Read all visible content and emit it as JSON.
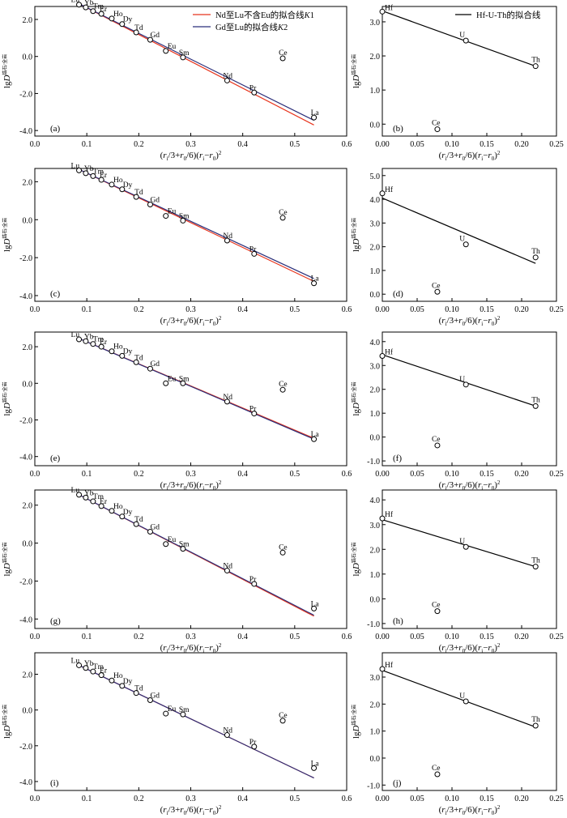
{
  "colors": {
    "red_fit": "#e8341c",
    "navy_fit": "#2b2f7a",
    "black_fit": "#000000"
  },
  "left_axis": {
    "ylabel_main": "lgD",
    "ylabel_sup": "锆石/全岩",
    "xlabel": "(ri/3+r0/6)(ri−r0)²",
    "xlim": [
      0,
      0.6
    ],
    "xticks": [
      "0.0",
      "0.1",
      "0.2",
      "0.3",
      "0.4",
      "0.5",
      "0.6"
    ]
  },
  "right_axis": {
    "ylabel_main": "lgD",
    "ylabel_sup": "锆石/全岩",
    "xlabel": "(ri/3+r0/6)(ri−r0)²",
    "xticks_a": [
      "0.00",
      "0.05",
      "0.10",
      "0.15",
      "0.20",
      "0.25"
    ],
    "xticks_b": [
      "0.00",
      "0.05",
      "0.10",
      "0.15",
      "0.20",
      "0.25"
    ]
  },
  "legend_left": {
    "red_label": "Nd至Lu不含Eu的拟合线K1",
    "navy_label": "Gd至Lu的拟合线K2"
  },
  "legend_right": {
    "black_label": "Hf-U-Th的拟合线"
  },
  "chart_data": [
    {
      "panel": "(a)",
      "type": "scatter",
      "ylim": [
        -4.3,
        2.7
      ],
      "yticks": [
        "-4.0",
        "-2.0",
        "0.0",
        "2.0"
      ],
      "points": [
        {
          "label": "Lu",
          "x": 0.085,
          "y": 2.8
        },
        {
          "label": "Yb",
          "x": 0.098,
          "y": 2.65
        },
        {
          "label": "Tm",
          "x": 0.112,
          "y": 2.45
        },
        {
          "label": "Er",
          "x": 0.128,
          "y": 2.3
        },
        {
          "label": "Ho",
          "x": 0.148,
          "y": 2.05
        },
        {
          "label": "Dy",
          "x": 0.168,
          "y": 1.75
        },
        {
          "label": "Td",
          "x": 0.195,
          "y": 1.3
        },
        {
          "label": "Gd",
          "x": 0.222,
          "y": 0.9
        },
        {
          "label": "Eu",
          "x": 0.252,
          "y": 0.3
        },
        {
          "label": "Sm",
          "x": 0.285,
          "y": -0.05
        },
        {
          "label": "Nd",
          "x": 0.37,
          "y": -1.3
        },
        {
          "label": "Pr",
          "x": 0.422,
          "y": -1.95
        },
        {
          "label": "Ce",
          "x": 0.477,
          "y": -0.1
        },
        {
          "label": "La",
          "x": 0.537,
          "y": -3.3
        }
      ],
      "fit_red": [
        [
          0.085,
          2.85
        ],
        [
          0.537,
          -3.7
        ]
      ],
      "fit_navy": [
        [
          0.085,
          2.85
        ],
        [
          0.537,
          -3.45
        ]
      ],
      "legend": true
    },
    {
      "panel": "(b)",
      "type": "scatter",
      "ylim": [
        -0.35,
        3.45
      ],
      "yticks": [
        "0.0",
        "1.0",
        "2.0",
        "3.0"
      ],
      "points": [
        {
          "label": "Hf",
          "x": 0.0,
          "y": 3.3
        },
        {
          "label": "Ce",
          "x": 0.079,
          "y": -0.15
        },
        {
          "label": "U",
          "x": 0.12,
          "y": 2.45
        },
        {
          "label": "Th",
          "x": 0.22,
          "y": 1.7
        }
      ],
      "fit_black": [
        [
          0.0,
          3.32
        ],
        [
          0.22,
          1.7
        ]
      ],
      "legend": true
    },
    {
      "panel": "(c)",
      "type": "scatter",
      "ylim": [
        -4.3,
        2.7
      ],
      "yticks": [
        "-4.0",
        "-2.0",
        "0.0",
        "2.0"
      ],
      "points": [
        {
          "label": "Lu",
          "x": 0.085,
          "y": 2.6
        },
        {
          "label": "Yb",
          "x": 0.098,
          "y": 2.45
        },
        {
          "label": "Tm",
          "x": 0.112,
          "y": 2.3
        },
        {
          "label": "Er",
          "x": 0.128,
          "y": 2.1
        },
        {
          "label": "Ho",
          "x": 0.148,
          "y": 1.85
        },
        {
          "label": "Dy",
          "x": 0.168,
          "y": 1.6
        },
        {
          "label": "Td",
          "x": 0.195,
          "y": 1.2
        },
        {
          "label": "Gd",
          "x": 0.222,
          "y": 0.8
        },
        {
          "label": "Eu",
          "x": 0.252,
          "y": 0.2
        },
        {
          "label": "Sm",
          "x": 0.285,
          "y": -0.05
        },
        {
          "label": "Nd",
          "x": 0.37,
          "y": -1.1
        },
        {
          "label": "Pr",
          "x": 0.422,
          "y": -1.8
        },
        {
          "label": "Ce",
          "x": 0.477,
          "y": 0.1
        },
        {
          "label": "La",
          "x": 0.537,
          "y": -3.35
        }
      ],
      "fit_red": [
        [
          0.085,
          2.65
        ],
        [
          0.537,
          -3.25
        ]
      ],
      "fit_navy": [
        [
          0.085,
          2.65
        ],
        [
          0.537,
          -3.1
        ]
      ]
    },
    {
      "panel": "(d)",
      "type": "scatter",
      "ylim": [
        -0.3,
        5.3
      ],
      "yticks": [
        "0.0",
        "1.0",
        "2.0",
        "3.0",
        "4.0",
        "5.0"
      ],
      "points": [
        {
          "label": "Hf",
          "x": 0.0,
          "y": 4.25
        },
        {
          "label": "Ce",
          "x": 0.079,
          "y": 0.1
        },
        {
          "label": "U",
          "x": 0.12,
          "y": 2.1
        },
        {
          "label": "Th",
          "x": 0.22,
          "y": 1.55
        }
      ],
      "fit_black": [
        [
          0.0,
          4.05
        ],
        [
          0.22,
          1.3
        ]
      ]
    },
    {
      "panel": "(e)",
      "type": "scatter",
      "ylim": [
        -4.5,
        2.8
      ],
      "yticks": [
        "-4.0",
        "-2.0",
        "0.0",
        "2.0"
      ],
      "points": [
        {
          "label": "Lu",
          "x": 0.085,
          "y": 2.4
        },
        {
          "label": "Yb",
          "x": 0.098,
          "y": 2.3
        },
        {
          "label": "Tm",
          "x": 0.112,
          "y": 2.15
        },
        {
          "label": "Er",
          "x": 0.128,
          "y": 2.0
        },
        {
          "label": "Ho",
          "x": 0.148,
          "y": 1.75
        },
        {
          "label": "Dy",
          "x": 0.168,
          "y": 1.5
        },
        {
          "label": "Td",
          "x": 0.195,
          "y": 1.15
        },
        {
          "label": "Gd",
          "x": 0.222,
          "y": 0.8
        },
        {
          "label": "Eu",
          "x": 0.252,
          "y": 0.0
        },
        {
          "label": "Sm",
          "x": 0.285,
          "y": 0.0
        },
        {
          "label": "Nd",
          "x": 0.37,
          "y": -1.0
        },
        {
          "label": "Pr",
          "x": 0.422,
          "y": -1.65
        },
        {
          "label": "Ce",
          "x": 0.477,
          "y": -0.35
        },
        {
          "label": "La",
          "x": 0.537,
          "y": -3.05
        }
      ],
      "fit_red": [
        [
          0.085,
          2.45
        ],
        [
          0.537,
          -3.0
        ]
      ],
      "fit_navy": [
        [
          0.085,
          2.45
        ],
        [
          0.537,
          -3.05
        ]
      ]
    },
    {
      "panel": "(f)",
      "type": "scatter",
      "ylim": [
        -1.2,
        4.4
      ],
      "yticks": [
        "-1.0",
        "0.0",
        "1.0",
        "2.0",
        "3.0",
        "4.0"
      ],
      "points": [
        {
          "label": "Hf",
          "x": 0.0,
          "y": 3.4
        },
        {
          "label": "Ce",
          "x": 0.079,
          "y": -0.35
        },
        {
          "label": "U",
          "x": 0.12,
          "y": 2.2
        },
        {
          "label": "Th",
          "x": 0.22,
          "y": 1.3
        }
      ],
      "fit_black": [
        [
          0.0,
          3.45
        ],
        [
          0.22,
          1.3
        ]
      ]
    },
    {
      "panel": "(g)",
      "type": "scatter",
      "ylim": [
        -4.5,
        2.8
      ],
      "yticks": [
        "-4.0",
        "-2.0",
        "0.0",
        "2.0"
      ],
      "points": [
        {
          "label": "Lu",
          "x": 0.085,
          "y": 2.55
        },
        {
          "label": "Yb",
          "x": 0.098,
          "y": 2.4
        },
        {
          "label": "Tm",
          "x": 0.112,
          "y": 2.2
        },
        {
          "label": "Er",
          "x": 0.128,
          "y": 1.95
        },
        {
          "label": "Ho",
          "x": 0.148,
          "y": 1.7
        },
        {
          "label": "Dy",
          "x": 0.168,
          "y": 1.4
        },
        {
          "label": "Td",
          "x": 0.195,
          "y": 1.0
        },
        {
          "label": "Gd",
          "x": 0.222,
          "y": 0.6
        },
        {
          "label": "Eu",
          "x": 0.252,
          "y": -0.05
        },
        {
          "label": "Sm",
          "x": 0.285,
          "y": -0.3
        },
        {
          "label": "Nd",
          "x": 0.37,
          "y": -1.45
        },
        {
          "label": "Pr",
          "x": 0.422,
          "y": -2.15
        },
        {
          "label": "Ce",
          "x": 0.477,
          "y": -0.5
        },
        {
          "label": "La",
          "x": 0.537,
          "y": -3.45
        }
      ],
      "fit_red": [
        [
          0.085,
          2.55
        ],
        [
          0.537,
          -3.85
        ]
      ],
      "fit_navy": [
        [
          0.085,
          2.55
        ],
        [
          0.537,
          -3.8
        ]
      ]
    },
    {
      "panel": "(h)",
      "type": "scatter",
      "ylim": [
        -1.2,
        4.4
      ],
      "yticks": [
        "-1.0",
        "0.0",
        "1.0",
        "2.0",
        "3.0",
        "4.0"
      ],
      "points": [
        {
          "label": "Hf",
          "x": 0.0,
          "y": 3.25
        },
        {
          "label": "Ce",
          "x": 0.079,
          "y": -0.5
        },
        {
          "label": "U",
          "x": 0.12,
          "y": 2.1
        },
        {
          "label": "Th",
          "x": 0.22,
          "y": 1.3
        }
      ],
      "fit_black": [
        [
          0.0,
          3.2
        ],
        [
          0.22,
          1.3
        ]
      ]
    },
    {
      "panel": "(i)",
      "type": "scatter",
      "ylim": [
        -4.5,
        3.2
      ],
      "yticks": [
        "-4.0",
        "-2.0",
        "0.0",
        "2.0"
      ],
      "points": [
        {
          "label": "Lu",
          "x": 0.085,
          "y": 2.5
        },
        {
          "label": "Yb",
          "x": 0.098,
          "y": 2.35
        },
        {
          "label": "Tm",
          "x": 0.112,
          "y": 2.15
        },
        {
          "label": "Er",
          "x": 0.128,
          "y": 1.95
        },
        {
          "label": "Ho",
          "x": 0.148,
          "y": 1.65
        },
        {
          "label": "Dy",
          "x": 0.168,
          "y": 1.35
        },
        {
          "label": "Td",
          "x": 0.195,
          "y": 0.95
        },
        {
          "label": "Gd",
          "x": 0.222,
          "y": 0.55
        },
        {
          "label": "Eu",
          "x": 0.252,
          "y": -0.2
        },
        {
          "label": "Sm",
          "x": 0.285,
          "y": -0.25
        },
        {
          "label": "Nd",
          "x": 0.37,
          "y": -1.4
        },
        {
          "label": "Pr",
          "x": 0.422,
          "y": -2.05
        },
        {
          "label": "Ce",
          "x": 0.477,
          "y": -0.6
        },
        {
          "label": "La",
          "x": 0.537,
          "y": -3.25
        }
      ],
      "fit_red": [
        [
          0.085,
          2.5
        ],
        [
          0.537,
          -3.8
        ]
      ],
      "fit_navy": [
        [
          0.085,
          2.5
        ],
        [
          0.537,
          -3.8
        ]
      ]
    },
    {
      "panel": "(j)",
      "type": "scatter",
      "ylim": [
        -1.2,
        3.9
      ],
      "yticks": [
        "-1.0",
        "0.0",
        "1.0",
        "2.0",
        "3.0"
      ],
      "points": [
        {
          "label": "Hf",
          "x": 0.0,
          "y": 3.3
        },
        {
          "label": "Ce",
          "x": 0.079,
          "y": -0.6
        },
        {
          "label": "U",
          "x": 0.12,
          "y": 2.1
        },
        {
          "label": "Th",
          "x": 0.22,
          "y": 1.2
        }
      ],
      "fit_black": [
        [
          0.0,
          3.25
        ],
        [
          0.22,
          1.15
        ]
      ]
    }
  ]
}
